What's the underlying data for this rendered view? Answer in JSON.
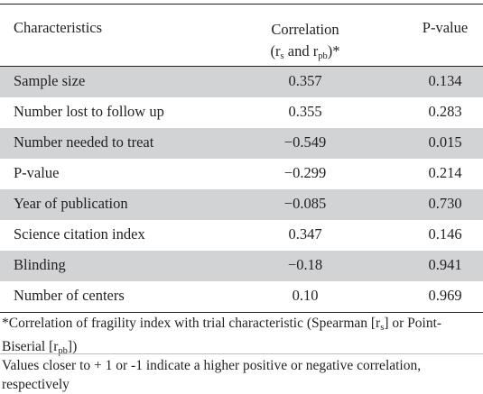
{
  "header": {
    "characteristics": "Characteristics",
    "correlation_line1": "Correlation",
    "correlation_line2_open": "(r",
    "correlation_sub_s": "s",
    "correlation_line2_mid": " and  r",
    "correlation_sub_pb": "pb",
    "correlation_line2_close": ")*",
    "p_value": "P-value"
  },
  "rows": [
    {
      "characteristic": "Sample size",
      "correlation": "0.357",
      "p_value": "0.134"
    },
    {
      "characteristic": "Number lost to follow up",
      "correlation": "0.355",
      "p_value": "0.283"
    },
    {
      "characteristic": "Number needed to treat",
      "correlation": "−0.549",
      "p_value": "0.015"
    },
    {
      "characteristic": "P-value",
      "correlation": "−0.299",
      "p_value": "0.214"
    },
    {
      "characteristic": "Year of publication",
      "correlation": "−0.085",
      "p_value": "0.730"
    },
    {
      "characteristic": "Science citation index",
      "correlation": "0.347",
      "p_value": "0.146"
    },
    {
      "characteristic": "Blinding",
      "correlation": "−0.18",
      "p_value": "0.941"
    },
    {
      "characteristic": "Number of centers",
      "correlation": "0.10",
      "p_value": "0.969"
    }
  ],
  "footnotes": {
    "note1_part1": "*Correlation of fragility index with trial characteristic (Spearman [r",
    "note1_sub_s": "s",
    "note1_part2": "] or Point-Biserial [r",
    "note1_sub_pb": "pb",
    "note1_part3": "])",
    "note2": "Values closer to + 1 or -1 indicate a higher positive or negative correlation, respectively"
  },
  "colors": {
    "shaded_row": "#d1d3d4",
    "text": "#231f20"
  }
}
